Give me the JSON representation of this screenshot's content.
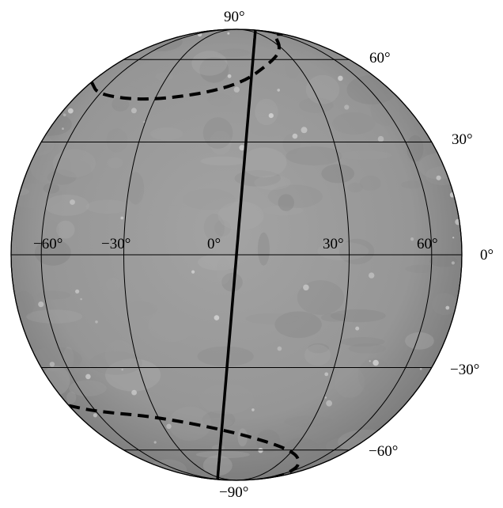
{
  "map": {
    "colors": {
      "sphere_fill": "#9c9c9c",
      "grid_line": "#000000",
      "dashed_line": "#000000",
      "label_text": "#000000",
      "background": "#ffffff"
    },
    "graticule_latitudes": [
      -90,
      -60,
      -30,
      0,
      30,
      60,
      90
    ],
    "graticule_longitudes": [
      -90,
      -60,
      -30,
      0,
      30,
      60,
      90
    ],
    "bold_meridian_longitude": 0,
    "dashed_curve_north": [
      [
        -90,
        50
      ],
      [
        -60,
        45
      ],
      [
        -30,
        43
      ],
      [
        0,
        48
      ],
      [
        20,
        60
      ],
      [
        30,
        67
      ],
      [
        45,
        76
      ],
      [
        55,
        78
      ],
      [
        80,
        78
      ]
    ],
    "dashed_curve_south": [
      [
        -90,
        -42
      ],
      [
        -60,
        -44
      ],
      [
        -30,
        -46
      ],
      [
        0,
        -52
      ],
      [
        30,
        -60
      ],
      [
        50,
        -68
      ],
      [
        70,
        -76
      ],
      [
        90,
        -80
      ]
    ],
    "labels": {
      "lat_90": "90°",
      "lat_60": "60°",
      "lat_30": "30°",
      "lat_0": "0°",
      "lat_m30": "−30°",
      "lat_m60": "−60°",
      "lat_m90": "−90°",
      "lon_m60": "−60°",
      "lon_m30": "−30°",
      "lon_0": "0°",
      "lon_30": "30°",
      "lon_60": "60°"
    }
  }
}
